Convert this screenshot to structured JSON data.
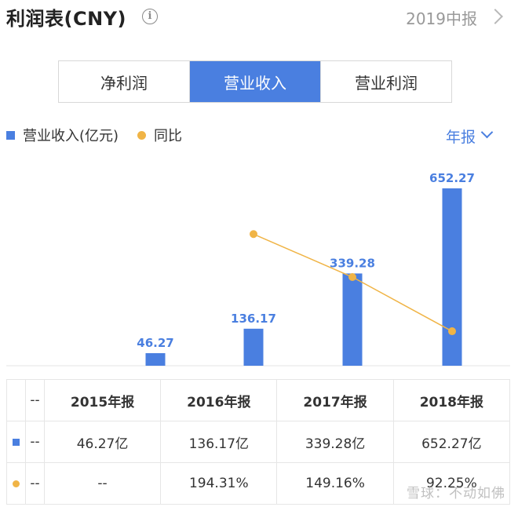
{
  "header": {
    "title": "利润表(CNY)",
    "info_icon": "info-icon",
    "period": "2019中报"
  },
  "tabs": [
    {
      "label": "净利润",
      "active": false
    },
    {
      "label": "营业收入",
      "active": true
    },
    {
      "label": "营业利润",
      "active": false
    }
  ],
  "legend": {
    "bar_label": "营业收入(亿元)",
    "line_label": "同比"
  },
  "range_label": "年报",
  "chart_data": {
    "type": "bar",
    "categories": [
      "",
      "2015年报",
      "2016年报",
      "2017年报",
      "2018年报"
    ],
    "series": [
      {
        "name": "营业收入(亿元)",
        "type": "bar",
        "values": [
          null,
          46.27,
          136.17,
          339.28,
          652.27
        ],
        "color": "#4a7fe0"
      },
      {
        "name": "同比",
        "type": "line",
        "values": [
          null,
          null,
          194.31,
          149.16,
          92.25
        ],
        "color": "#f0b446"
      }
    ],
    "data_labels": [
      "",
      "46.27",
      "136.17",
      "339.28",
      "652.27"
    ],
    "ylim": [
      0,
      652.27
    ],
    "legend_position": "top-left"
  },
  "table": {
    "header": [
      "--",
      "2015年报",
      "2016年报",
      "2017年报",
      "2018年报"
    ],
    "revenue_row": [
      "--",
      "46.27亿",
      "136.17亿",
      "339.28亿",
      "652.27亿"
    ],
    "yoy_row": [
      "--",
      "--",
      "194.31%",
      "149.16%",
      "92.25%"
    ]
  },
  "watermark": "雪球：不动如佛"
}
